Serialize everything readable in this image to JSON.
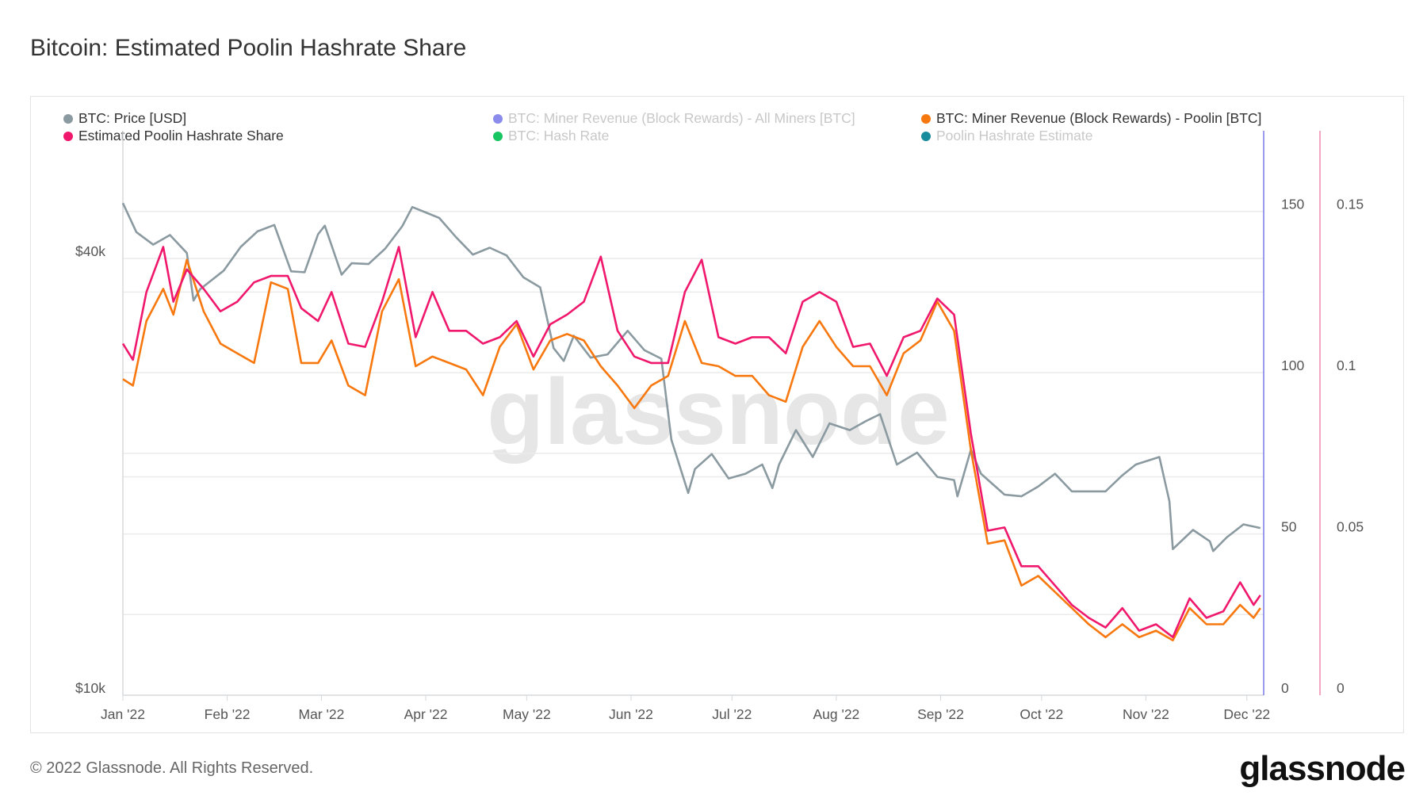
{
  "title": "Bitcoin: Estimated Poolin Hashrate Share",
  "footer": "© 2022 Glassnode. All Rights Reserved.",
  "logo": "glassnode",
  "watermark": "glassnode",
  "colors": {
    "price": "#8a9aa0",
    "revenue_all": "#8b8bec",
    "revenue_poolin": "#f7780f",
    "share": "#f0186c",
    "hashrate": "#17c561",
    "poolin_hashrate": "#178c9c",
    "axis_revenue": "#7b7bea",
    "axis_share": "#f08aae"
  },
  "legend": [
    {
      "label": "BTC: Price [USD]",
      "color": "#8a9aa0",
      "active": true
    },
    {
      "label": "BTC: Miner Revenue (Block Rewards) - All Miners [BTC]",
      "color": "#8b8bec",
      "active": false
    },
    {
      "label": "BTC: Miner Revenue (Block Rewards) - Poolin [BTC]",
      "color": "#f7780f",
      "active": true
    },
    {
      "label": "Estimated Poolin Hashrate Share",
      "color": "#f0186c",
      "active": true
    },
    {
      "label": "BTC: Hash Rate",
      "color": "#17c561",
      "active": false
    },
    {
      "label": "Poolin Hashrate Estimate",
      "color": "#178c9c",
      "active": false
    }
  ],
  "chart_data": {
    "type": "line",
    "title": "Bitcoin: Estimated Poolin Hashrate Share",
    "legend_position": "top",
    "grid": true,
    "x_ticks": [
      "Jan '22",
      "Feb '22",
      "Mar '22",
      "Apr '22",
      "May '22",
      "Jun '22",
      "Jul '22",
      "Aug '22",
      "Sep '22",
      "Oct '22",
      "Nov '22",
      "Dec '22"
    ],
    "x_range": [
      "2022-01-01",
      "2022-12-06"
    ],
    "axes": {
      "price": {
        "scale": "log",
        "range": [
          10000,
          60000
        ],
        "ticks": [
          "$10k",
          "$40k"
        ],
        "tick_values": [
          10000,
          40000
        ]
      },
      "revenue": {
        "scale": "linear",
        "range": [
          0,
          175
        ],
        "ticks": [
          "0",
          "50",
          "100",
          "150"
        ],
        "tick_values": [
          0,
          50,
          100,
          150
        ]
      },
      "share": {
        "scale": "linear",
        "range": [
          0,
          0.175
        ],
        "ticks": [
          "0",
          "0.05",
          "0.1",
          "0.15"
        ],
        "tick_values": [
          0,
          0.05,
          0.1,
          0.15
        ]
      }
    },
    "series": [
      {
        "name": "BTC: Price [USD]",
        "axis": "price",
        "color": "#8a9aa0",
        "x": [
          "2022-01-01",
          "2022-01-05",
          "2022-01-10",
          "2022-01-15",
          "2022-01-20",
          "2022-01-22",
          "2022-01-24",
          "2022-01-31",
          "2022-02-05",
          "2022-02-10",
          "2022-02-15",
          "2022-02-20",
          "2022-02-24",
          "2022-02-28",
          "2022-03-02",
          "2022-03-07",
          "2022-03-10",
          "2022-03-15",
          "2022-03-20",
          "2022-03-25",
          "2022-03-28",
          "2022-04-01",
          "2022-04-05",
          "2022-04-10",
          "2022-04-15",
          "2022-04-20",
          "2022-04-25",
          "2022-04-30",
          "2022-05-05",
          "2022-05-09",
          "2022-05-12",
          "2022-05-15",
          "2022-05-20",
          "2022-05-25",
          "2022-05-31",
          "2022-06-05",
          "2022-06-10",
          "2022-06-13",
          "2022-06-18",
          "2022-06-20",
          "2022-06-25",
          "2022-06-30",
          "2022-07-05",
          "2022-07-10",
          "2022-07-13",
          "2022-07-15",
          "2022-07-20",
          "2022-07-25",
          "2022-07-30",
          "2022-08-05",
          "2022-08-10",
          "2022-08-14",
          "2022-08-19",
          "2022-08-25",
          "2022-08-31",
          "2022-09-05",
          "2022-09-06",
          "2022-09-10",
          "2022-09-13",
          "2022-09-20",
          "2022-09-25",
          "2022-09-30",
          "2022-10-05",
          "2022-10-10",
          "2022-10-15",
          "2022-10-20",
          "2022-10-25",
          "2022-10-29",
          "2022-11-05",
          "2022-11-08",
          "2022-11-09",
          "2022-11-15",
          "2022-11-20",
          "2022-11-21",
          "2022-11-25",
          "2022-11-30",
          "2022-12-05"
        ],
        "values": [
          47700,
          43500,
          41800,
          43100,
          40700,
          35000,
          36300,
          38500,
          41500,
          43600,
          44500,
          38400,
          38300,
          43200,
          44400,
          38000,
          39400,
          39300,
          41300,
          44300,
          47100,
          46300,
          45500,
          42800,
          40500,
          41400,
          40400,
          37700,
          36500,
          30100,
          28900,
          31300,
          29200,
          29500,
          31800,
          29900,
          29100,
          22500,
          19000,
          20500,
          21500,
          19900,
          20200,
          20800,
          19300,
          20800,
          23200,
          21300,
          23700,
          23200,
          23900,
          24400,
          20800,
          21600,
          20000,
          19800,
          18800,
          21800,
          20200,
          18900,
          18800,
          19400,
          20200,
          19100,
          19100,
          19100,
          20100,
          20800,
          21300,
          18500,
          15900,
          16900,
          16300,
          15800,
          16500,
          17200,
          17000
        ]
      },
      {
        "name": "BTC: Miner Revenue (Block Rewards) - Poolin [BTC]",
        "axis": "revenue",
        "color": "#f7780f",
        "x": [
          "2022-01-01",
          "2022-01-04",
          "2022-01-08",
          "2022-01-13",
          "2022-01-16",
          "2022-01-20",
          "2022-01-25",
          "2022-01-30",
          "2022-02-04",
          "2022-02-09",
          "2022-02-14",
          "2022-02-19",
          "2022-02-23",
          "2022-02-28",
          "2022-03-04",
          "2022-03-09",
          "2022-03-14",
          "2022-03-19",
          "2022-03-24",
          "2022-03-29",
          "2022-04-03",
          "2022-04-08",
          "2022-04-13",
          "2022-04-18",
          "2022-04-23",
          "2022-04-28",
          "2022-05-03",
          "2022-05-08",
          "2022-05-13",
          "2022-05-18",
          "2022-05-23",
          "2022-05-28",
          "2022-06-02",
          "2022-06-07",
          "2022-06-12",
          "2022-06-17",
          "2022-06-22",
          "2022-06-27",
          "2022-07-02",
          "2022-07-07",
          "2022-07-12",
          "2022-07-17",
          "2022-07-22",
          "2022-07-27",
          "2022-08-01",
          "2022-08-06",
          "2022-08-11",
          "2022-08-16",
          "2022-08-21",
          "2022-08-26",
          "2022-08-31",
          "2022-09-05",
          "2022-09-10",
          "2022-09-15",
          "2022-09-20",
          "2022-09-25",
          "2022-09-30",
          "2022-10-05",
          "2022-10-10",
          "2022-10-15",
          "2022-10-20",
          "2022-10-25",
          "2022-10-30",
          "2022-11-04",
          "2022-11-09",
          "2022-11-14",
          "2022-11-19",
          "2022-11-24",
          "2022-11-29",
          "2022-12-03",
          "2022-12-05"
        ],
        "values": [
          98,
          96,
          116,
          126,
          118,
          135,
          119,
          109,
          106,
          103,
          128,
          126,
          103,
          103,
          110,
          96,
          93,
          119,
          129,
          102,
          105,
          103,
          101,
          93,
          108,
          115,
          101,
          110,
          112,
          110,
          102,
          96,
          89,
          96,
          99,
          116,
          103,
          102,
          99,
          99,
          93,
          91,
          108,
          116,
          108,
          102,
          102,
          93,
          106,
          110,
          122,
          113,
          76,
          47,
          48,
          34,
          37,
          32,
          27,
          22,
          18,
          22,
          18,
          20,
          17,
          27,
          22,
          22,
          28,
          24,
          27
        ]
      },
      {
        "name": "Estimated Poolin Hashrate Share",
        "axis": "share",
        "color": "#f0186c",
        "x": [
          "2022-01-01",
          "2022-01-04",
          "2022-01-08",
          "2022-01-13",
          "2022-01-16",
          "2022-01-20",
          "2022-01-25",
          "2022-01-30",
          "2022-02-04",
          "2022-02-09",
          "2022-02-14",
          "2022-02-19",
          "2022-02-23",
          "2022-02-28",
          "2022-03-04",
          "2022-03-09",
          "2022-03-14",
          "2022-03-19",
          "2022-03-24",
          "2022-03-29",
          "2022-04-03",
          "2022-04-08",
          "2022-04-13",
          "2022-04-18",
          "2022-04-23",
          "2022-04-28",
          "2022-05-03",
          "2022-05-08",
          "2022-05-13",
          "2022-05-18",
          "2022-05-23",
          "2022-05-28",
          "2022-06-02",
          "2022-06-07",
          "2022-06-12",
          "2022-06-17",
          "2022-06-22",
          "2022-06-27",
          "2022-07-02",
          "2022-07-07",
          "2022-07-12",
          "2022-07-17",
          "2022-07-22",
          "2022-07-27",
          "2022-08-01",
          "2022-08-06",
          "2022-08-11",
          "2022-08-16",
          "2022-08-21",
          "2022-08-26",
          "2022-08-31",
          "2022-09-05",
          "2022-09-10",
          "2022-09-15",
          "2022-09-20",
          "2022-09-25",
          "2022-09-30",
          "2022-10-05",
          "2022-10-10",
          "2022-10-15",
          "2022-10-20",
          "2022-10-25",
          "2022-10-30",
          "2022-11-04",
          "2022-11-09",
          "2022-11-14",
          "2022-11-19",
          "2022-11-24",
          "2022-11-29",
          "2022-12-03",
          "2022-12-05"
        ],
        "values": [
          0.109,
          0.104,
          0.125,
          0.139,
          0.122,
          0.132,
          0.126,
          0.119,
          0.122,
          0.128,
          0.13,
          0.13,
          0.12,
          0.116,
          0.125,
          0.109,
          0.108,
          0.122,
          0.139,
          0.111,
          0.125,
          0.113,
          0.113,
          0.109,
          0.111,
          0.116,
          0.105,
          0.115,
          0.118,
          0.122,
          0.136,
          0.113,
          0.105,
          0.103,
          0.103,
          0.125,
          0.135,
          0.111,
          0.109,
          0.111,
          0.111,
          0.106,
          0.122,
          0.125,
          0.122,
          0.108,
          0.109,
          0.099,
          0.111,
          0.113,
          0.123,
          0.118,
          0.081,
          0.051,
          0.052,
          0.04,
          0.04,
          0.034,
          0.028,
          0.024,
          0.021,
          0.027,
          0.02,
          0.022,
          0.018,
          0.03,
          0.024,
          0.026,
          0.035,
          0.028,
          0.031
        ]
      }
    ]
  }
}
